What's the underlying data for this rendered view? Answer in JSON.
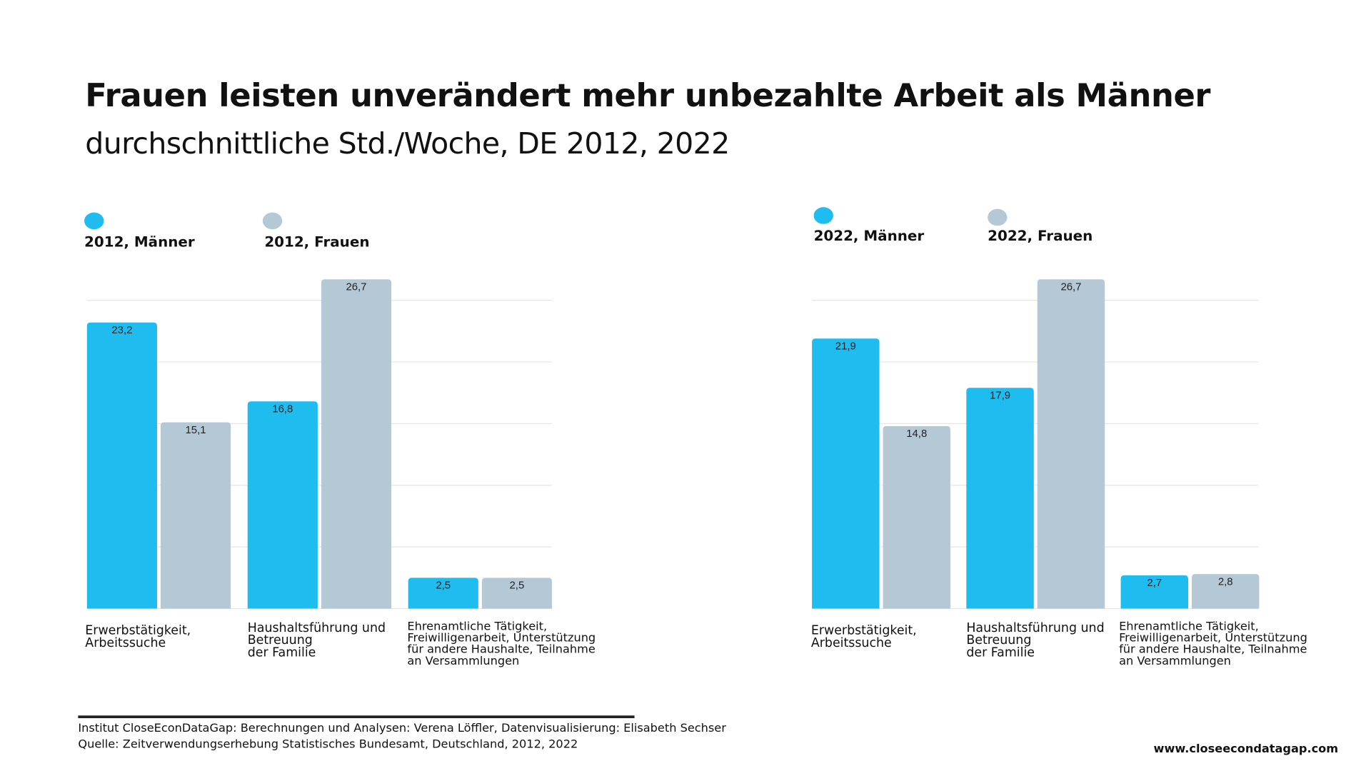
{
  "title": "Frauen leisten unverändert mehr unbezahlte Arbeit als Männer",
  "subtitle": "durchschnittliche Std./Woche, DE 2012, 2022",
  "footer": [
    "Institut CloseEconDataGap: Berechnungen und Analysen: Verena Löffler, Datenvisualisierung: Elisabeth Sechser",
    "Quelle: Zeitverwendungserhebung Statistisches Bundesamt, Deutschland, 2012, 2022"
  ],
  "url": "www.closeecondatagap.com",
  "chart_data": [
    {
      "type": "bar",
      "categories": [
        "Erwerbstätigkeit,\nArbeitssuche",
        "Haushaltsführung und\nBetreuung\nder Familie",
        "Ehrenamtliche Tätigkeit,\nFreiwilligenarbeit, Unterstützung\nfür andere Haushalte, Teilnahme\nan Versammlungen"
      ],
      "series": [
        {
          "name": "2012, Männer",
          "color": "#1fbcf0",
          "values": [
            23.2,
            16.8,
            2.5
          ],
          "value_labels": [
            "23,2",
            "16,8",
            "2,5"
          ]
        },
        {
          "name": "2012, Frauen",
          "color": "#b5c8d6",
          "values": [
            15.1,
            26.7,
            2.5
          ],
          "value_labels": [
            "15,1",
            "26,7",
            "2,5"
          ]
        }
      ],
      "ylim": [
        0,
        27
      ],
      "yticks": [
        0,
        5,
        10,
        15,
        20,
        25
      ],
      "grid": true
    },
    {
      "type": "bar",
      "categories": [
        "Erwerbstätigkeit,\nArbeitssuche",
        "Haushaltsführung und\nBetreuung\nder Familie",
        "Ehrenamtliche Tätigkeit,\nFreiwilligenarbeit, Unterstützung\nfür andere Haushalte, Teilnahme\nan Versammlungen"
      ],
      "series": [
        {
          "name": "2022, Männer",
          "color": "#1fbcf0",
          "values": [
            21.9,
            17.9,
            2.7
          ],
          "value_labels": [
            "21,9",
            "17,9",
            "2,7"
          ]
        },
        {
          "name": "2022, Frauen",
          "color": "#b5c8d6",
          "values": [
            14.8,
            26.7,
            2.8
          ],
          "value_labels": [
            "14,8",
            "26,7",
            "2,8"
          ]
        }
      ],
      "ylim": [
        0,
        27
      ],
      "yticks": [
        0,
        5,
        10,
        15,
        20,
        25
      ],
      "grid": true
    }
  ]
}
